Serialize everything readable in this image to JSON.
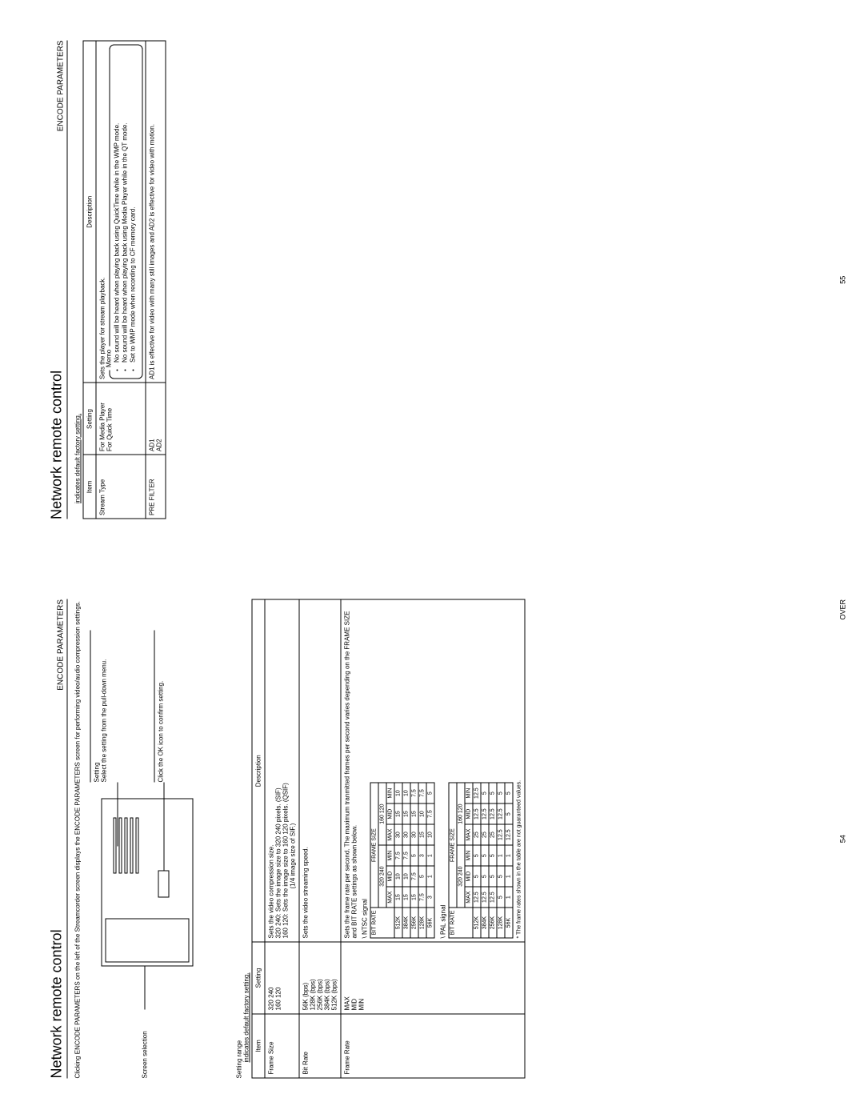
{
  "page54": {
    "title": "Network remote control",
    "section": "ENCODE PARAMETERS",
    "intro": "Clicking ENCODE PARAMETERS on the left of the Streamcorder screen displays the ENCODE PARAMETERS screen for performing video/audio compression settings.",
    "screen_selection": "Screen selection",
    "callout1_h": "Setting",
    "callout1_b": "Select the setting from the pull-down menu.",
    "callout2": "Click the OK icon to confirm setting.",
    "range1": "Setting range",
    "range2": "indicates default factory setting.",
    "h_item": "Item",
    "h_set": "Setting",
    "h_desc": "Description",
    "row1_item": "Frame Size",
    "row1_set_a": "320   240",
    "row1_set_b": "160   120",
    "row1_desc": "Sets the video compression size.",
    "row1_pair_a": "320   240: Sets the image size to 320   240 pixels. (SIF)",
    "row1_pair_b": "160   120: Sets the image size to 160   120 pixels. (QSIF)",
    "row1_pair_c": "(1/4 image size of SIF.)",
    "row2_item": "Bit Rate",
    "row2_sets": [
      "56K (bps)",
      "128K (bps)",
      "256K (bps)",
      "384K (bps)",
      "512K (bps)"
    ],
    "row2_desc": "Sets the video streaming speed.",
    "row3_item": "Frame Rate",
    "row3_sets": [
      "MAX",
      "MID",
      "MIN"
    ],
    "row3_desc": "Sets the frame rate per second. The maximum tranmitted frames per second varies depending on the FRAME SIZE and BIT RATE settings as shown below.",
    "ntsc": "\\ NTSC signal",
    "pal": "\\ PAL signal",
    "mx_h1": "BIT RATE",
    "mx_h2": "FRAME SIZE",
    "mx_fs_a": "320   240",
    "mx_fs_b": "160   120",
    "mx_lvl": [
      "MAX",
      "MID",
      "MIN",
      "MAX",
      "MID",
      "MIN"
    ],
    "ntsc_rows": [
      [
        "512K",
        "15",
        "10",
        "7.5",
        "30",
        "15",
        "10"
      ],
      [
        "384K",
        "15",
        "10",
        "7.5",
        "30",
        "15",
        "10"
      ],
      [
        "256K",
        "15",
        "7.5",
        "5",
        "30",
        "15",
        "7.5"
      ],
      [
        "128K",
        "7.5",
        "5",
        "3",
        "15",
        "10",
        "7.5"
      ],
      [
        "56K",
        "3",
        "1",
        "1",
        "10",
        "7.5",
        "5"
      ]
    ],
    "pal_rows": [
      [
        "512K",
        "12.5",
        "5",
        "5",
        "25",
        "12.5",
        "12.5"
      ],
      [
        "384K",
        "12.5",
        "5",
        "5",
        "25",
        "12.5",
        "5"
      ],
      [
        "256K",
        "12.5",
        "5",
        "5",
        "25",
        "12.5",
        "5"
      ],
      [
        "128K",
        "5",
        "5",
        "1",
        "12.5",
        "12.5",
        "5"
      ],
      [
        "56K",
        "1",
        "1",
        "1",
        "12.5",
        "5",
        "5"
      ]
    ],
    "guarantee": "* The frame rates shown in the table are not guaranteed values.",
    "pagenum": "54",
    "over": "OVER"
  },
  "page55": {
    "title": "Network remote control",
    "section": "ENCODE PARAMETERS",
    "range2": "indicates default factory setting.",
    "h_item": "Item",
    "h_set": "Setting",
    "h_desc": "Description",
    "r1_item": "Stream Type",
    "r1_sets": [
      "For Media Player",
      "For Quick Time"
    ],
    "r1_desc": "Sets the player for stream playback.",
    "memo_title": "Memo",
    "memo_items": [
      "No sound will be heard when playing back using QuickTime while in the WMP mode.",
      "No sound will be heard when playing back using Media Player while in the QT mode.",
      "Set to WMP mode when recording to CF memory card."
    ],
    "r2_item": "PRE FILTER",
    "r2_sets": [
      "AD1",
      "AD2"
    ],
    "r2_desc": "AD1 is effective for video with many still images and AD2 is effective for video with motion.",
    "pagenum": "55"
  }
}
